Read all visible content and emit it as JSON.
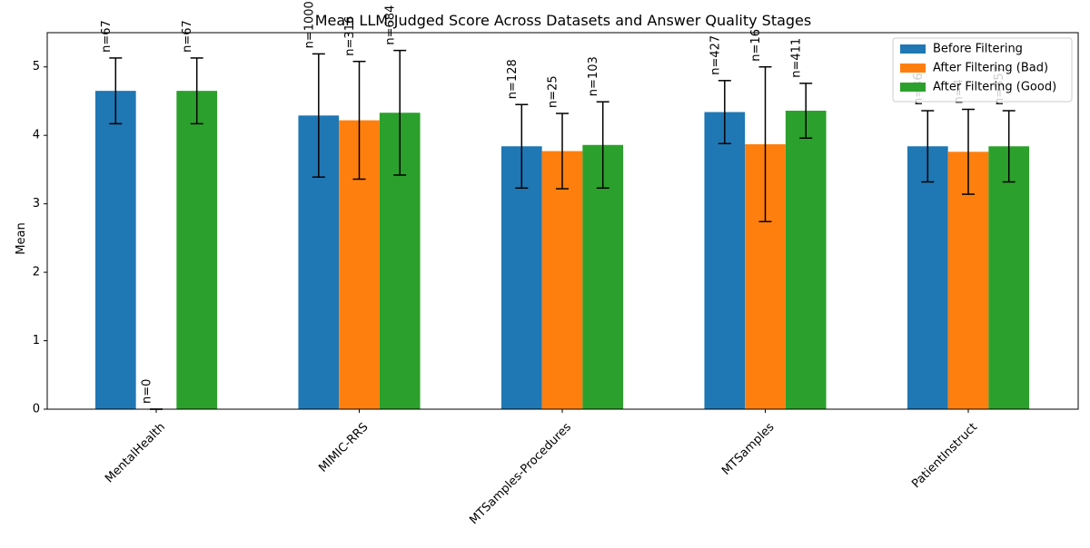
{
  "chart_data": {
    "type": "bar",
    "title": "Mean LLM-Judged Score Across Datasets and Answer Quality Stages",
    "xlabel": "",
    "ylabel": "Mean",
    "ylim": [
      0,
      5.5
    ],
    "yticks": [
      0,
      1,
      2,
      3,
      4,
      5
    ],
    "grid": false,
    "legend_position": "top-right",
    "categories": [
      "MentalHealth",
      "MIMIC-RRS",
      "MTSamples-Procedures",
      "MTSamples",
      "PatientInstruct"
    ],
    "series": [
      {
        "name": "Before Filtering",
        "color": "#1f77b4",
        "values": [
          4.65,
          4.29,
          3.84,
          4.34,
          3.84
        ],
        "err": [
          0.48,
          0.9,
          0.61,
          0.46,
          0.52
        ],
        "n": [
          "n=67",
          "n=1000",
          "n=128",
          "n=427",
          "n=361"
        ]
      },
      {
        "name": "After Filtering (Bad)",
        "color": "#ff7f0e",
        "values": [
          0,
          4.22,
          3.77,
          3.87,
          3.76
        ],
        "err": [
          0,
          0.86,
          0.55,
          1.13,
          0.62
        ],
        "n": [
          "n=0",
          "n=316",
          "n=25",
          "n=16",
          "n=4"
        ]
      },
      {
        "name": "After Filtering (Good)",
        "color": "#2ca02c",
        "values": [
          4.65,
          4.33,
          3.86,
          4.36,
          3.84
        ],
        "err": [
          0.48,
          0.91,
          0.63,
          0.4,
          0.52
        ],
        "n": [
          "n=67",
          "n=684",
          "n=103",
          "n=411",
          "n=357"
        ]
      }
    ]
  }
}
